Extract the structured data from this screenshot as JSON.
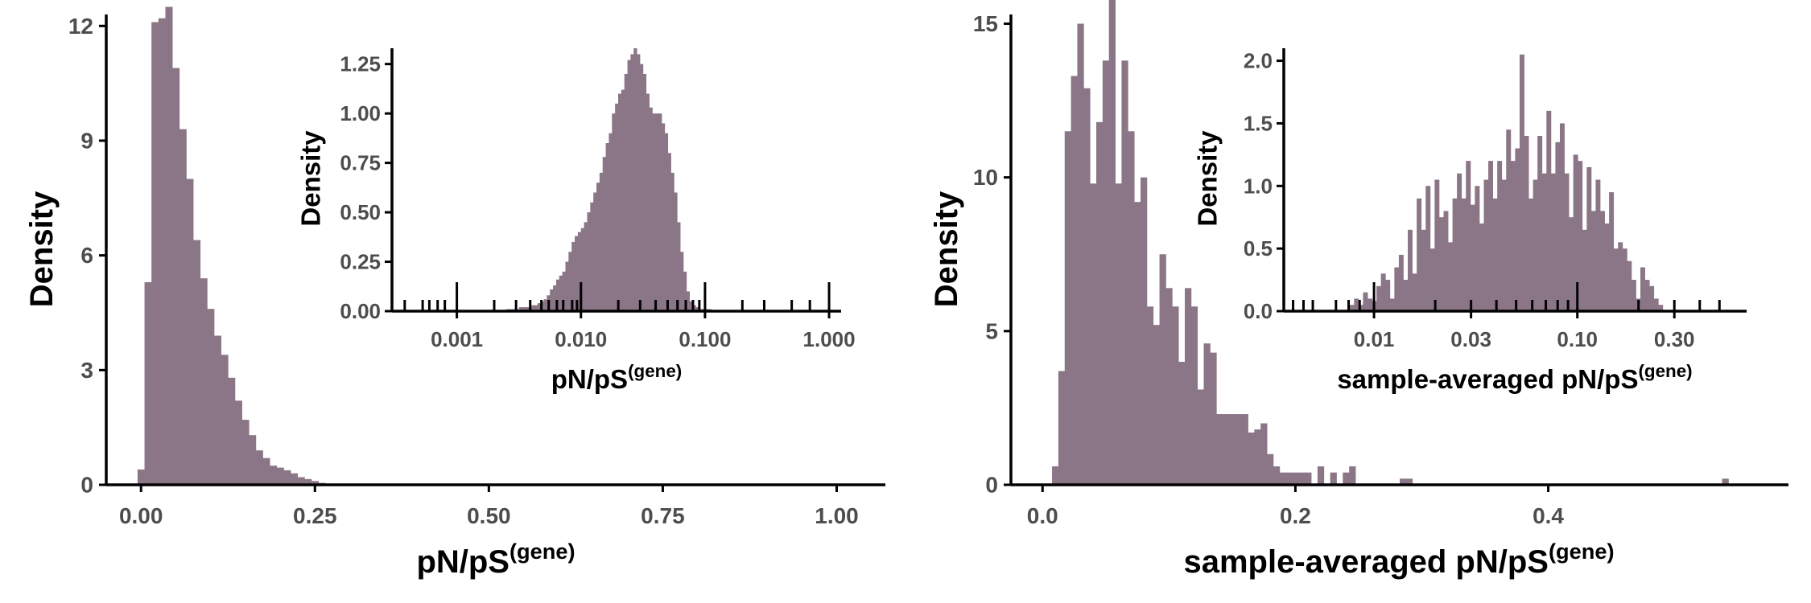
{
  "colors": {
    "bar": "#8a7686",
    "axis": "#000000",
    "tick_text": "#4d4d4d"
  },
  "chart_data": [
    {
      "type": "bar",
      "panel": "left-main",
      "xlabel": "pN/pS",
      "xlabel_sup": "(gene)",
      "ylabel": "Density",
      "xlim": [
        -0.05,
        1.07
      ],
      "ylim": [
        0,
        12.3
      ],
      "xticks": [
        0.0,
        0.25,
        0.5,
        0.75,
        1.0
      ],
      "xtick_labels": [
        "0.00",
        "0.25",
        "0.50",
        "0.75",
        "1.00"
      ],
      "yticks": [
        0,
        3,
        6,
        9,
        12
      ],
      "ytick_labels": [
        "0",
        "3",
        "6",
        "9",
        "12"
      ],
      "bin_start": -0.005,
      "bin_width": 0.01,
      "values": [
        0.4,
        5.3,
        12.1,
        12.2,
        12.5,
        10.9,
        9.3,
        8.0,
        6.4,
        5.4,
        4.6,
        3.9,
        3.4,
        2.8,
        2.2,
        1.7,
        1.3,
        0.9,
        0.7,
        0.5,
        0.45,
        0.38,
        0.3,
        0.2,
        0.15,
        0.1,
        0.05,
        0.03,
        0.02,
        0.02
      ]
    },
    {
      "type": "bar",
      "panel": "left-inset",
      "xlabel": "pN/pS",
      "xlabel_sup": "(gene)",
      "ylabel": "Density",
      "x_scale": "log10",
      "xlim": [
        0.0003,
        1.25
      ],
      "ylim": [
        0,
        1.33
      ],
      "xticks": [
        0.001,
        0.01,
        0.1,
        1.0
      ],
      "xtick_labels": [
        "0.001",
        "0.010",
        "0.100",
        "1.000"
      ],
      "yticks": [
        0,
        0.25,
        0.5,
        0.75,
        1.0,
        1.25
      ],
      "ytick_labels": [
        "0.00",
        "0.25",
        "0.50",
        "0.75",
        "1.00",
        "1.25"
      ],
      "bin_log_start": -2.6,
      "bin_log_width": 0.025,
      "values": [
        0.01,
        0.01,
        0.01,
        0.01,
        0.02,
        0.02,
        0.02,
        0.02,
        0.03,
        0.03,
        0.04,
        0.05,
        0.06,
        0.08,
        0.11,
        0.13,
        0.16,
        0.18,
        0.2,
        0.25,
        0.3,
        0.35,
        0.38,
        0.4,
        0.42,
        0.45,
        0.5,
        0.55,
        0.6,
        0.65,
        0.7,
        0.78,
        0.85,
        0.9,
        1.0,
        1.05,
        1.1,
        1.12,
        1.2,
        1.27,
        1.3,
        1.33,
        1.3,
        1.25,
        1.2,
        1.1,
        1.03,
        1.0,
        1.0,
        1.0,
        0.95,
        0.9,
        0.8,
        0.7,
        0.6,
        0.45,
        0.3,
        0.2,
        0.1,
        0.05,
        0.03,
        0.02,
        0.01,
        0.01,
        0.01,
        0.01
      ],
      "rug": [
        0.00038,
        0.00053,
        0.0006,
        0.0007,
        0.0008,
        0.001,
        0.002,
        0.003,
        0.0039,
        0.0048,
        0.0055,
        0.0064,
        0.0072,
        0.0085,
        0.0093,
        0.01,
        0.02,
        0.03,
        0.04,
        0.05,
        0.06,
        0.07,
        0.08,
        0.09,
        0.1,
        0.2,
        0.3,
        0.5,
        0.7,
        1.0
      ],
      "rug_major": [
        0.001,
        0.01,
        0.1,
        1.0
      ]
    },
    {
      "type": "bar",
      "panel": "right-main",
      "xlabel": "sample-averaged pN/pS",
      "xlabel_sup": "(gene)",
      "ylabel": "Density",
      "xlim": [
        -0.025,
        0.59
      ],
      "ylim": [
        0,
        15.3
      ],
      "xticks": [
        0.0,
        0.2,
        0.4
      ],
      "xtick_labels": [
        "0.0",
        "0.2",
        "0.4"
      ],
      "yticks": [
        0,
        5,
        10,
        15
      ],
      "ytick_labels": [
        "0",
        "5",
        "10",
        "15"
      ],
      "bin_start": 0.0025,
      "bin_width": 0.005,
      "values": [
        0.0,
        0.6,
        3.7,
        11.5,
        13.3,
        15.0,
        12.9,
        9.8,
        11.8,
        13.8,
        15.8,
        9.8,
        13.8,
        11.5,
        9.2,
        10.0,
        5.8,
        5.2,
        7.5,
        6.4,
        5.8,
        4.0,
        6.4,
        5.8,
        3.1,
        4.6,
        4.3,
        2.3,
        2.3,
        2.3,
        2.3,
        2.3,
        1.7,
        1.8,
        2.0,
        1.0,
        0.6,
        0.4,
        0.4,
        0.4,
        0.4,
        0.4,
        0.0,
        0.6,
        0.0,
        0.4,
        0.0,
        0.4,
        0.6,
        0.0,
        0.0,
        0.0,
        0.0,
        0.0,
        0.0,
        0.0,
        0.2,
        0.2,
        0.0,
        0.0,
        0.0,
        0.0,
        0.0,
        0.0,
        0.0,
        0.0,
        0.0,
        0.0,
        0.0,
        0.0,
        0.0,
        0.0,
        0.0,
        0.0,
        0.0,
        0.0,
        0.0,
        0.0,
        0.0,
        0.0,
        0.0,
        0.0,
        0.0,
        0.0,
        0.0,
        0.0,
        0.0,
        0.0,
        0.0,
        0.0,
        0.0,
        0.0,
        0.0,
        0.0,
        0.0,
        0.0,
        0.0,
        0.0,
        0.0,
        0.0,
        0.0,
        0.0,
        0.0,
        0.0,
        0.0,
        0.0,
        0.0,
        0.2
      ]
    },
    {
      "type": "bar",
      "panel": "right-inset",
      "xlabel": "sample-averaged pN/pS",
      "xlabel_sup": "(gene)",
      "ylabel": "Density",
      "x_scale": "log10",
      "xlim": [
        0.0036,
        0.68
      ],
      "ylim": [
        0,
        2.1
      ],
      "xticks": [
        0.01,
        0.03,
        0.1,
        0.3
      ],
      "xtick_labels": [
        "0.01",
        "0.03",
        "0.10",
        "0.30"
      ],
      "yticks": [
        0,
        0.5,
        1.0,
        1.5,
        2.0
      ],
      "ytick_labels": [
        "0.0",
        "0.5",
        "1.0",
        "1.5",
        "2.0"
      ],
      "bin_log_start": -2.12,
      "bin_log_width": 0.022,
      "values": [
        0.05,
        0.1,
        0.05,
        0.15,
        0.1,
        0.08,
        0.2,
        0.3,
        0.25,
        0.1,
        0.35,
        0.45,
        0.25,
        0.65,
        0.3,
        0.9,
        0.65,
        1.0,
        0.5,
        1.05,
        0.75,
        0.8,
        0.55,
        0.9,
        1.1,
        0.9,
        1.2,
        0.85,
        1.0,
        0.7,
        1.05,
        1.2,
        0.9,
        1.2,
        1.05,
        1.45,
        1.2,
        1.3,
        2.05,
        1.4,
        0.9,
        1.05,
        1.4,
        1.1,
        1.6,
        1.1,
        1.35,
        1.5,
        1.1,
        0.75,
        1.25,
        1.2,
        0.65,
        1.15,
        0.8,
        1.05,
        0.8,
        0.7,
        0.95,
        0.5,
        0.55,
        0.5,
        0.4,
        0.25,
        0.1,
        0.35,
        0.25,
        0.2,
        0.1,
        0.05
      ],
      "rug": [
        0.004,
        0.0045,
        0.005,
        0.0065,
        0.0075,
        0.0085,
        0.01,
        0.02,
        0.03,
        0.04,
        0.05,
        0.06,
        0.07,
        0.08,
        0.09,
        0.1,
        0.2,
        0.3,
        0.4,
        0.5
      ],
      "rug_major": [
        0.01,
        0.1
      ]
    }
  ]
}
